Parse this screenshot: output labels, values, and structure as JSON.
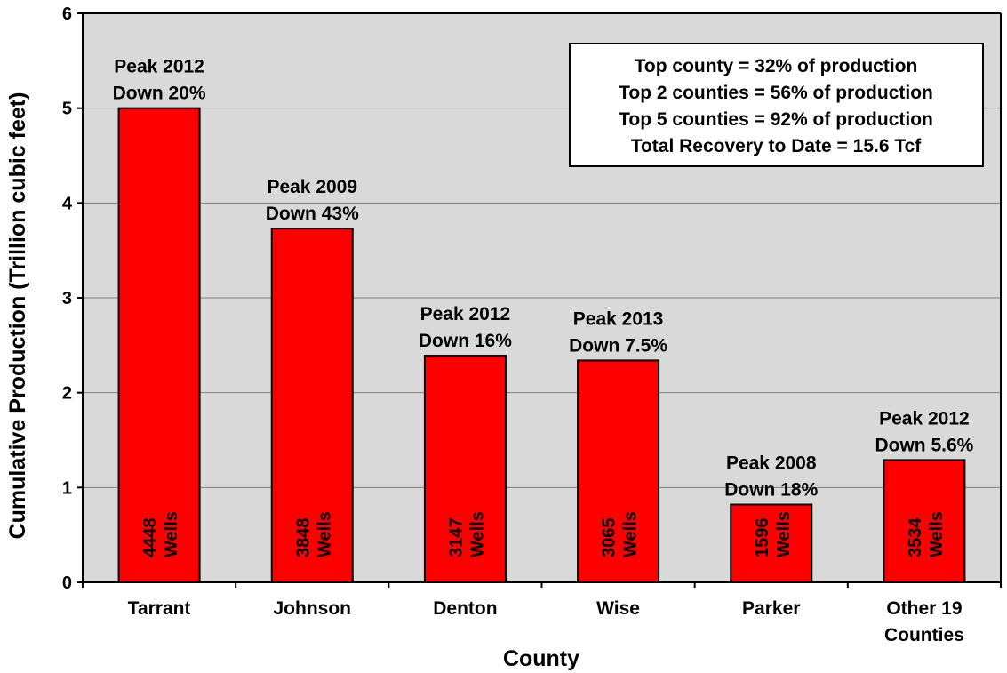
{
  "chart_data": {
    "type": "bar",
    "xlabel": "County",
    "ylabel": "Cumulative Production (Trillion cubic feet)",
    "ylim": [
      0,
      6
    ],
    "yticks": [
      "0",
      "1",
      "2",
      "3",
      "4",
      "5",
      "6"
    ],
    "grid": true,
    "categories": [
      [
        "Tarrant"
      ],
      [
        "Johnson"
      ],
      [
        "Denton"
      ],
      [
        "Wise"
      ],
      [
        "Parker"
      ],
      [
        "Other 19",
        "Counties"
      ]
    ],
    "values": [
      5.0,
      3.73,
      2.39,
      2.34,
      0.82,
      1.29
    ],
    "annotations": [
      [
        "Peak 2012",
        "Down 20%"
      ],
      [
        "Peak 2009",
        "Down 43%"
      ],
      [
        "Peak 2012",
        "Down 16%"
      ],
      [
        "Peak 2013",
        "Down 7.5%"
      ],
      [
        "Peak 2008",
        "Down 18%"
      ],
      [
        "Peak 2012",
        "Down 5.6%"
      ]
    ],
    "wells": [
      [
        "4448",
        "Wells"
      ],
      [
        "3848",
        "Wells"
      ],
      [
        "3147",
        "Wells"
      ],
      [
        "3065",
        "Wells"
      ],
      [
        "1596",
        "Wells"
      ],
      [
        "3534",
        "Wells"
      ]
    ],
    "info_box": [
      "Top county = 32% of production",
      "Top 2 counties = 56% of production",
      "Top 5 counties = 92% of production",
      "Total Recovery to Date = 15.6 Tcf"
    ],
    "colors": {
      "bar": "#ff0000",
      "bar_edge": "#000000",
      "plot_bg": "#d9d9d9",
      "grid": "#808080"
    }
  }
}
